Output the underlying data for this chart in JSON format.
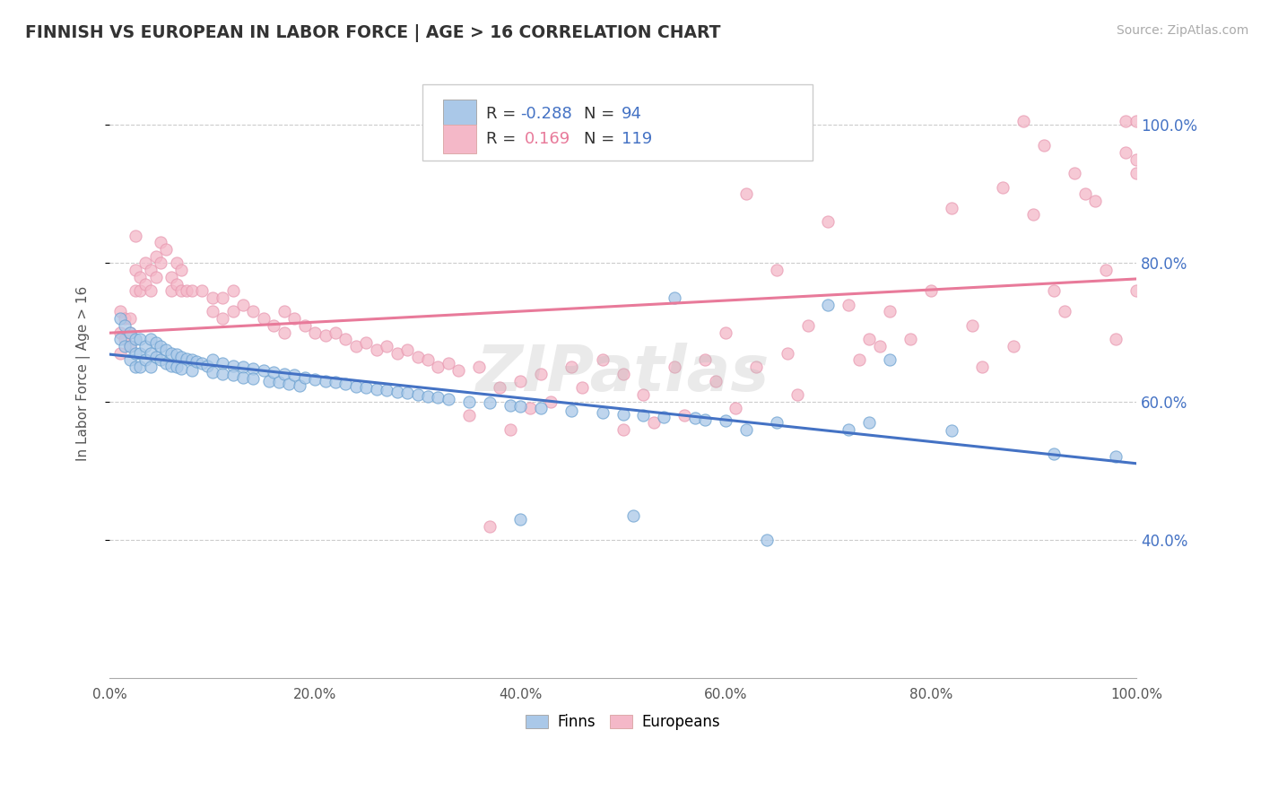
{
  "title": "FINNISH VS EUROPEAN IN LABOR FORCE | AGE > 16 CORRELATION CHART",
  "source": "Source: ZipAtlas.com",
  "ylabel": "In Labor Force | Age > 16",
  "xlim": [
    0.0,
    1.0
  ],
  "ylim": [
    0.2,
    1.08
  ],
  "x_ticks": [
    0.0,
    0.2,
    0.4,
    0.6,
    0.8,
    1.0
  ],
  "x_tick_labels": [
    "0.0%",
    "20.0%",
    "40.0%",
    "60.0%",
    "80.0%",
    "100.0%"
  ],
  "y_ticks": [
    0.4,
    0.6,
    0.8,
    1.0
  ],
  "y_tick_labels": [
    "40.0%",
    "60.0%",
    "80.0%",
    "100.0%"
  ],
  "legend_blue_label": "Finns",
  "legend_pink_label": "Europeans",
  "R_blue": -0.288,
  "N_blue": 94,
  "R_pink": 0.169,
  "N_pink": 119,
  "blue_color": "#aac8e8",
  "pink_color": "#f4b8c8",
  "blue_line_color": "#4472c4",
  "pink_line_color": "#e87a9a",
  "blue_edge": "#6aa0d0",
  "pink_edge": "#e898b0",
  "watermark": "ZIPatlas",
  "blue_scatter": [
    [
      0.01,
      0.72
    ],
    [
      0.01,
      0.69
    ],
    [
      0.015,
      0.71
    ],
    [
      0.015,
      0.68
    ],
    [
      0.02,
      0.7
    ],
    [
      0.02,
      0.68
    ],
    [
      0.02,
      0.66
    ],
    [
      0.025,
      0.69
    ],
    [
      0.025,
      0.67
    ],
    [
      0.025,
      0.65
    ],
    [
      0.03,
      0.69
    ],
    [
      0.03,
      0.67
    ],
    [
      0.03,
      0.65
    ],
    [
      0.035,
      0.68
    ],
    [
      0.035,
      0.66
    ],
    [
      0.04,
      0.69
    ],
    [
      0.04,
      0.67
    ],
    [
      0.04,
      0.65
    ],
    [
      0.045,
      0.685
    ],
    [
      0.045,
      0.665
    ],
    [
      0.05,
      0.68
    ],
    [
      0.05,
      0.66
    ],
    [
      0.055,
      0.675
    ],
    [
      0.055,
      0.655
    ],
    [
      0.06,
      0.67
    ],
    [
      0.06,
      0.652
    ],
    [
      0.065,
      0.668
    ],
    [
      0.065,
      0.65
    ],
    [
      0.07,
      0.665
    ],
    [
      0.07,
      0.648
    ],
    [
      0.075,
      0.662
    ],
    [
      0.08,
      0.66
    ],
    [
      0.08,
      0.645
    ],
    [
      0.085,
      0.658
    ],
    [
      0.09,
      0.655
    ],
    [
      0.095,
      0.652
    ],
    [
      0.1,
      0.66
    ],
    [
      0.1,
      0.643
    ],
    [
      0.11,
      0.655
    ],
    [
      0.11,
      0.64
    ],
    [
      0.12,
      0.652
    ],
    [
      0.12,
      0.638
    ],
    [
      0.13,
      0.65
    ],
    [
      0.13,
      0.635
    ],
    [
      0.14,
      0.648
    ],
    [
      0.14,
      0.633
    ],
    [
      0.15,
      0.645
    ],
    [
      0.155,
      0.63
    ],
    [
      0.16,
      0.643
    ],
    [
      0.165,
      0.628
    ],
    [
      0.17,
      0.64
    ],
    [
      0.175,
      0.625
    ],
    [
      0.18,
      0.638
    ],
    [
      0.185,
      0.623
    ],
    [
      0.19,
      0.635
    ],
    [
      0.2,
      0.632
    ],
    [
      0.21,
      0.63
    ],
    [
      0.22,
      0.628
    ],
    [
      0.23,
      0.625
    ],
    [
      0.24,
      0.622
    ],
    [
      0.25,
      0.62
    ],
    [
      0.26,
      0.618
    ],
    [
      0.27,
      0.616
    ],
    [
      0.28,
      0.614
    ],
    [
      0.29,
      0.612
    ],
    [
      0.3,
      0.61
    ],
    [
      0.31,
      0.608
    ],
    [
      0.32,
      0.606
    ],
    [
      0.33,
      0.604
    ],
    [
      0.35,
      0.6
    ],
    [
      0.37,
      0.598
    ],
    [
      0.39,
      0.595
    ],
    [
      0.4,
      0.593
    ],
    [
      0.4,
      0.43
    ],
    [
      0.42,
      0.59
    ],
    [
      0.45,
      0.587
    ],
    [
      0.48,
      0.584
    ],
    [
      0.5,
      0.582
    ],
    [
      0.51,
      0.435
    ],
    [
      0.52,
      0.58
    ],
    [
      0.54,
      0.578
    ],
    [
      0.55,
      0.75
    ],
    [
      0.57,
      0.576
    ],
    [
      0.58,
      0.574
    ],
    [
      0.6,
      0.572
    ],
    [
      0.62,
      0.56
    ],
    [
      0.64,
      0.4
    ],
    [
      0.65,
      0.57
    ],
    [
      0.7,
      0.74
    ],
    [
      0.72,
      0.56
    ],
    [
      0.74,
      0.57
    ],
    [
      0.76,
      0.66
    ],
    [
      0.82,
      0.558
    ],
    [
      0.92,
      0.525
    ],
    [
      0.98,
      0.52
    ]
  ],
  "pink_scatter": [
    [
      0.01,
      0.73
    ],
    [
      0.01,
      0.7
    ],
    [
      0.01,
      0.67
    ],
    [
      0.015,
      0.72
    ],
    [
      0.015,
      0.69
    ],
    [
      0.02,
      0.72
    ],
    [
      0.02,
      0.7
    ],
    [
      0.02,
      0.68
    ],
    [
      0.025,
      0.84
    ],
    [
      0.025,
      0.79
    ],
    [
      0.025,
      0.76
    ],
    [
      0.03,
      0.78
    ],
    [
      0.03,
      0.76
    ],
    [
      0.035,
      0.8
    ],
    [
      0.035,
      0.77
    ],
    [
      0.04,
      0.79
    ],
    [
      0.04,
      0.76
    ],
    [
      0.045,
      0.81
    ],
    [
      0.045,
      0.78
    ],
    [
      0.05,
      0.83
    ],
    [
      0.05,
      0.8
    ],
    [
      0.055,
      0.82
    ],
    [
      0.06,
      0.78
    ],
    [
      0.06,
      0.76
    ],
    [
      0.065,
      0.8
    ],
    [
      0.065,
      0.77
    ],
    [
      0.07,
      0.79
    ],
    [
      0.07,
      0.76
    ],
    [
      0.075,
      0.76
    ],
    [
      0.08,
      0.76
    ],
    [
      0.09,
      0.76
    ],
    [
      0.1,
      0.75
    ],
    [
      0.1,
      0.73
    ],
    [
      0.11,
      0.75
    ],
    [
      0.11,
      0.72
    ],
    [
      0.12,
      0.76
    ],
    [
      0.12,
      0.73
    ],
    [
      0.13,
      0.74
    ],
    [
      0.14,
      0.73
    ],
    [
      0.15,
      0.72
    ],
    [
      0.16,
      0.71
    ],
    [
      0.17,
      0.73
    ],
    [
      0.17,
      0.7
    ],
    [
      0.18,
      0.72
    ],
    [
      0.19,
      0.71
    ],
    [
      0.2,
      0.7
    ],
    [
      0.21,
      0.695
    ],
    [
      0.22,
      0.7
    ],
    [
      0.23,
      0.69
    ],
    [
      0.24,
      0.68
    ],
    [
      0.25,
      0.685
    ],
    [
      0.26,
      0.675
    ],
    [
      0.27,
      0.68
    ],
    [
      0.28,
      0.67
    ],
    [
      0.29,
      0.675
    ],
    [
      0.3,
      0.665
    ],
    [
      0.31,
      0.66
    ],
    [
      0.32,
      0.65
    ],
    [
      0.33,
      0.655
    ],
    [
      0.34,
      0.645
    ],
    [
      0.35,
      0.58
    ],
    [
      0.36,
      0.65
    ],
    [
      0.37,
      0.42
    ],
    [
      0.38,
      0.62
    ],
    [
      0.39,
      0.56
    ],
    [
      0.4,
      0.63
    ],
    [
      0.41,
      0.59
    ],
    [
      0.42,
      0.64
    ],
    [
      0.43,
      0.6
    ],
    [
      0.45,
      0.65
    ],
    [
      0.46,
      0.62
    ],
    [
      0.48,
      0.66
    ],
    [
      0.5,
      0.56
    ],
    [
      0.5,
      0.64
    ],
    [
      0.52,
      0.61
    ],
    [
      0.53,
      0.57
    ],
    [
      0.55,
      0.65
    ],
    [
      0.56,
      0.58
    ],
    [
      0.58,
      0.66
    ],
    [
      0.59,
      0.63
    ],
    [
      0.6,
      0.7
    ],
    [
      0.61,
      0.59
    ],
    [
      0.62,
      0.9
    ],
    [
      0.63,
      0.65
    ],
    [
      0.65,
      0.79
    ],
    [
      0.66,
      0.67
    ],
    [
      0.67,
      0.61
    ],
    [
      0.68,
      0.71
    ],
    [
      0.7,
      0.86
    ],
    [
      0.72,
      0.74
    ],
    [
      0.73,
      0.66
    ],
    [
      0.74,
      0.69
    ],
    [
      0.75,
      0.68
    ],
    [
      0.76,
      0.73
    ],
    [
      0.78,
      0.69
    ],
    [
      0.8,
      0.76
    ],
    [
      0.82,
      0.88
    ],
    [
      0.84,
      0.71
    ],
    [
      0.85,
      0.65
    ],
    [
      0.87,
      0.91
    ],
    [
      0.88,
      0.68
    ],
    [
      0.89,
      1.005
    ],
    [
      0.9,
      0.87
    ],
    [
      0.91,
      0.97
    ],
    [
      0.92,
      0.76
    ],
    [
      0.93,
      0.73
    ],
    [
      0.94,
      0.93
    ],
    [
      0.95,
      0.9
    ],
    [
      0.96,
      0.89
    ],
    [
      0.97,
      0.79
    ],
    [
      0.98,
      0.69
    ],
    [
      0.99,
      1.005
    ],
    [
      0.99,
      0.96
    ],
    [
      1.0,
      1.005
    ],
    [
      1.0,
      0.95
    ],
    [
      1.0,
      0.76
    ],
    [
      1.0,
      0.93
    ]
  ]
}
